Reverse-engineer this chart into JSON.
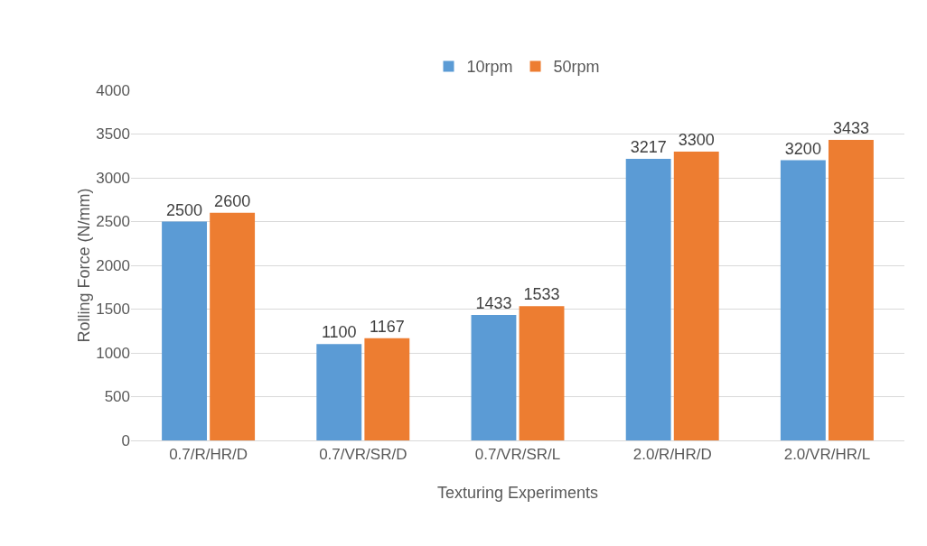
{
  "chart_data": {
    "type": "bar",
    "xlabel": "Texturing Experiments",
    "ylabel": "Rolling Force (N/mm)",
    "categories": [
      "0.7/R/HR/D",
      "0.7/VR/SR/D",
      "0.7/VR/SR/L",
      "2.0/R/HR/D",
      "2.0/VR/HR/L"
    ],
    "series": [
      {
        "name": "10rpm",
        "color": "#5b9bd5",
        "values": [
          2500,
          1100,
          1433,
          3217,
          3200
        ]
      },
      {
        "name": "50rpm",
        "color": "#ed7d31",
        "values": [
          2600,
          1167,
          1533,
          3300,
          3433
        ]
      }
    ],
    "ylim": [
      0,
      4000
    ],
    "yticks": [
      0,
      500,
      1000,
      1500,
      2000,
      2500,
      3000,
      3500,
      4000
    ],
    "grid": "y",
    "legend": "top",
    "data_labels": true
  }
}
